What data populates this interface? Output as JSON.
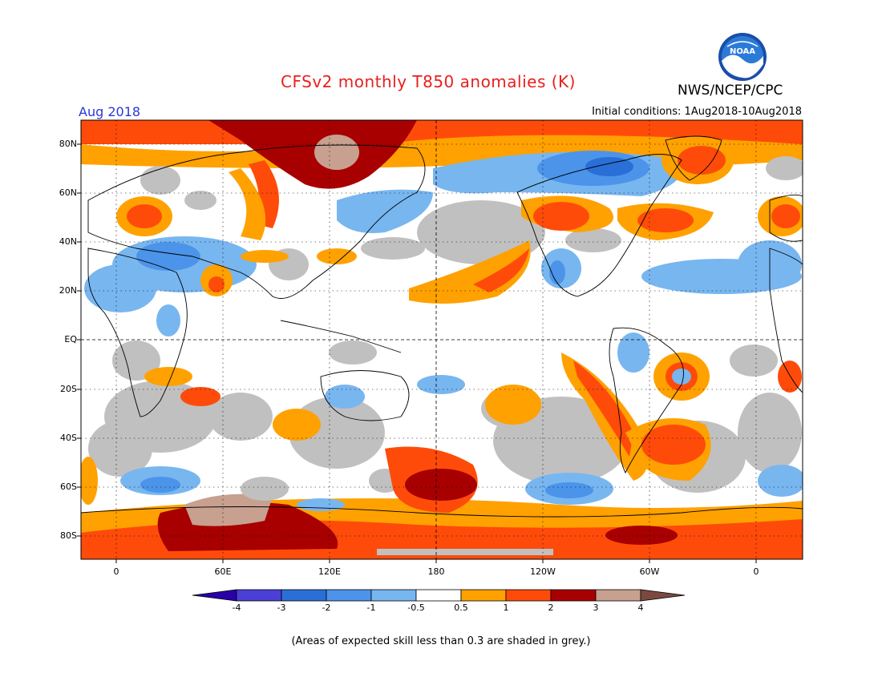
{
  "header": {
    "title": "CFSv2 monthly T850 anomalies (K)",
    "org": "NWS/NCEP/CPC",
    "month": "Aug 2018",
    "initial_conditions": "Initial conditions: 1Aug2018-10Aug2018",
    "logo_text": "NOAA"
  },
  "axes": {
    "lat_labels": [
      "80N",
      "60N",
      "40N",
      "20N",
      "EQ",
      "20S",
      "40S",
      "60S",
      "80S"
    ],
    "lon_labels": [
      "0",
      "60E",
      "120E",
      "180",
      "120W",
      "60W",
      "0"
    ]
  },
  "colorbar": {
    "labels": [
      "-4",
      "-3",
      "-2",
      "-1",
      "-0.5",
      "0.5",
      "1",
      "2",
      "3",
      "4"
    ],
    "colors": [
      "#2a00a8",
      "#4b3fd6",
      "#2a6fd8",
      "#4b94ea",
      "#78b6f0",
      "#ffffff",
      "#ffa100",
      "#ff4b0a",
      "#a80000",
      "#c8a090",
      "#7a4a40"
    ]
  },
  "legend_colors": {
    "grey_skill": "#c0c0c0"
  },
  "footnote": "(Areas of expected skill less than 0.3 are shaded in grey.)"
}
